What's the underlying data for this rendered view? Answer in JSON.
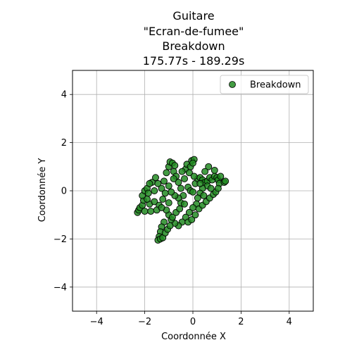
{
  "chart_data": {
    "type": "scatter",
    "title_lines": [
      "Guitare",
      "\"Ecran-de-fumee\"",
      "Breakdown",
      "175.77s - 189.29s"
    ],
    "xlabel": "Coordonnée X",
    "ylabel": "Coordonnée Y",
    "xlim": [
      -5,
      5
    ],
    "ylim": [
      -5,
      5
    ],
    "xticks": [
      -4,
      -2,
      0,
      2,
      4
    ],
    "yticks": [
      -4,
      -2,
      0,
      2,
      4
    ],
    "grid": true,
    "legend_position": "top-right",
    "series": [
      {
        "name": "Breakdown",
        "color": "#228b22",
        "edgecolor": "#000000",
        "points": [
          [
            -2.3,
            -0.9
          ],
          [
            -2.25,
            -0.8
          ],
          [
            -2.2,
            -0.7
          ],
          [
            -2.1,
            -0.6
          ],
          [
            -2.05,
            -0.4
          ],
          [
            -2.1,
            -0.2
          ],
          [
            -2.0,
            0.0
          ],
          [
            -1.9,
            0.1
          ],
          [
            -1.85,
            -0.1
          ],
          [
            -2.0,
            -0.85
          ],
          [
            -1.75,
            -0.85
          ],
          [
            -1.8,
            -0.55
          ],
          [
            -1.6,
            -0.45
          ],
          [
            -1.7,
            0.35
          ],
          [
            -1.8,
            0.3
          ],
          [
            -1.55,
            0.55
          ],
          [
            -1.45,
            0.3
          ],
          [
            -1.3,
            0.1
          ],
          [
            -1.2,
            0.4
          ],
          [
            -1.1,
            0.75
          ],
          [
            -1.0,
            1.0
          ],
          [
            -0.95,
            1.2
          ],
          [
            -0.85,
            1.15
          ],
          [
            -0.75,
            1.05
          ],
          [
            -0.8,
            0.8
          ],
          [
            -0.7,
            0.6
          ],
          [
            -0.6,
            0.35
          ],
          [
            -0.5,
            0.1
          ],
          [
            -0.4,
            -0.2
          ],
          [
            -0.35,
            0.5
          ],
          [
            -0.3,
            0.9
          ],
          [
            -0.25,
            1.1
          ],
          [
            -0.15,
            0.75
          ],
          [
            -0.1,
            1.0
          ],
          [
            -0.05,
            1.25
          ],
          [
            0.05,
            1.3
          ],
          [
            0.0,
            1.15
          ],
          [
            -0.2,
            0.15
          ],
          [
            -0.1,
            0.0
          ],
          [
            0.0,
            -0.05
          ],
          [
            0.1,
            0.3
          ],
          [
            0.2,
            0.5
          ],
          [
            0.3,
            0.55
          ],
          [
            0.4,
            0.45
          ],
          [
            0.5,
            0.35
          ],
          [
            0.6,
            0.4
          ],
          [
            0.7,
            0.55
          ],
          [
            0.8,
            0.45
          ],
          [
            0.9,
            0.6
          ],
          [
            1.0,
            0.55
          ],
          [
            1.05,
            0.45
          ],
          [
            1.1,
            0.3
          ],
          [
            1.15,
            0.6
          ],
          [
            1.3,
            0.35
          ],
          [
            1.35,
            0.4
          ],
          [
            0.65,
            1.0
          ],
          [
            0.9,
            0.85
          ],
          [
            0.6,
            0.2
          ],
          [
            0.4,
            0.1
          ],
          [
            0.3,
            -0.1
          ],
          [
            0.2,
            -0.3
          ],
          [
            0.15,
            -0.55
          ],
          [
            0.0,
            -0.7
          ],
          [
            -0.15,
            -0.9
          ],
          [
            -0.3,
            -1.1
          ],
          [
            -0.45,
            -1.3
          ],
          [
            -0.6,
            -1.45
          ],
          [
            -0.75,
            -1.35
          ],
          [
            -0.9,
            -1.2
          ],
          [
            -1.0,
            -1.0
          ],
          [
            -1.1,
            -0.8
          ],
          [
            -1.2,
            -1.3
          ],
          [
            -1.3,
            -1.5
          ],
          [
            -1.35,
            -1.7
          ],
          [
            -1.4,
            -1.9
          ],
          [
            -1.45,
            -2.05
          ],
          [
            -1.35,
            -2.0
          ],
          [
            -1.25,
            -1.95
          ],
          [
            -1.15,
            -1.75
          ],
          [
            -1.05,
            -1.6
          ],
          [
            -0.95,
            -1.45
          ],
          [
            -0.85,
            -1.1
          ],
          [
            -0.7,
            -0.9
          ],
          [
            -0.55,
            -0.75
          ],
          [
            -0.5,
            -0.5
          ],
          [
            -0.6,
            -0.3
          ],
          [
            -0.75,
            -0.2
          ],
          [
            -0.9,
            -0.05
          ],
          [
            -1.0,
            0.2
          ],
          [
            -1.15,
            -0.1
          ],
          [
            -1.25,
            -0.35
          ],
          [
            -1.4,
            -0.6
          ],
          [
            -1.5,
            -0.8
          ],
          [
            -1.3,
            -0.7
          ],
          [
            -1.0,
            -0.5
          ],
          [
            -0.2,
            -1.3
          ],
          [
            -0.05,
            -1.2
          ],
          [
            0.1,
            -1.0
          ],
          [
            0.25,
            -0.75
          ],
          [
            0.4,
            -0.6
          ],
          [
            0.55,
            -0.45
          ],
          [
            0.7,
            -0.3
          ],
          [
            0.85,
            -0.15
          ],
          [
            0.95,
            -0.05
          ],
          [
            1.05,
            0.1
          ],
          [
            0.75,
            0.1
          ],
          [
            0.45,
            -0.2
          ],
          [
            0.3,
            0.3
          ],
          [
            -0.35,
            -0.55
          ],
          [
            -0.8,
            0.5
          ],
          [
            -1.6,
            0.0
          ],
          [
            -1.9,
            -0.35
          ],
          [
            0.05,
            0.6
          ],
          [
            0.5,
            0.8
          ],
          [
            -0.45,
            0.8
          ]
        ]
      }
    ]
  }
}
